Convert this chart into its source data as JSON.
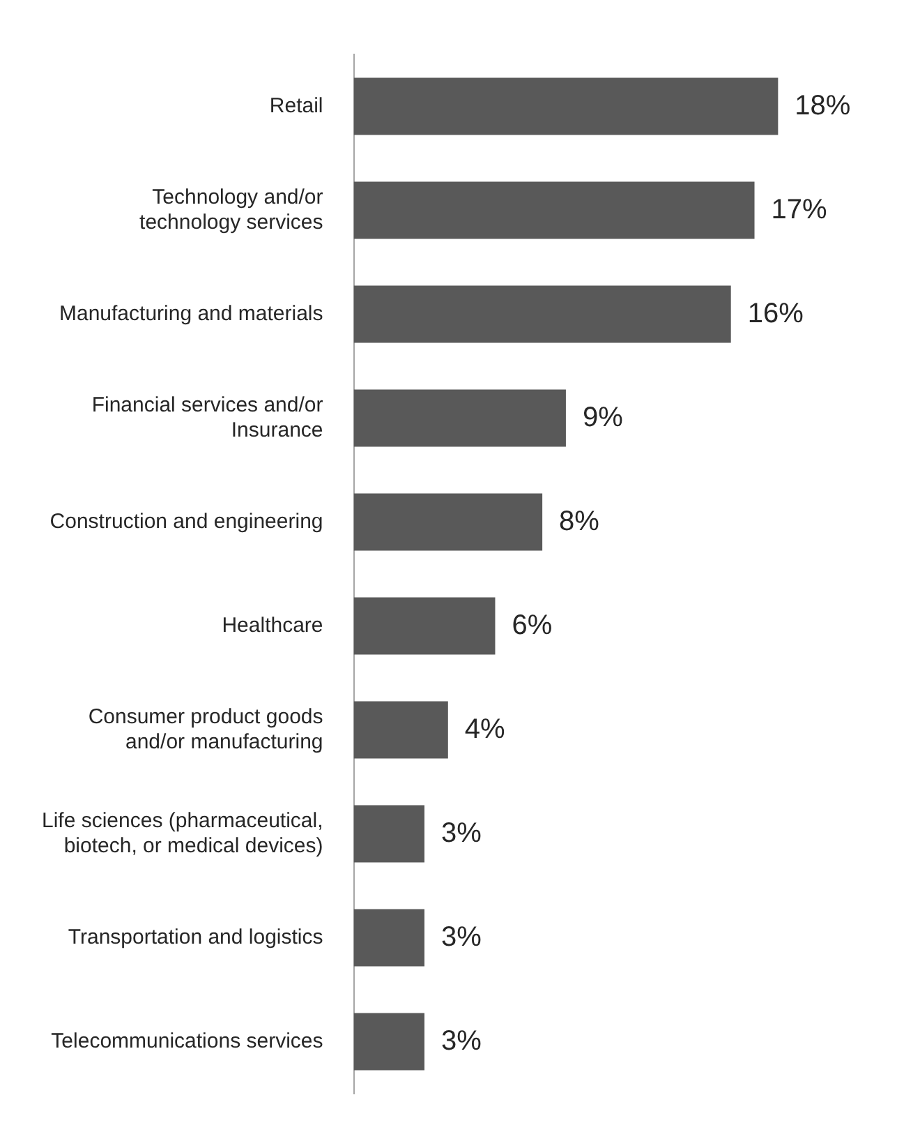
{
  "chart_data": {
    "type": "bar",
    "orientation": "horizontal",
    "categories": [
      "Retail",
      "Technology and/or\ntechnology services",
      "Manufacturing and materials",
      "Financial services and/or\nInsurance",
      "Construction and engineering",
      "Healthcare",
      "Consumer product goods\nand/or manufacturing",
      "Life sciences (pharmaceutical,\nbiotech, or medical devices)",
      "Transportation and logistics",
      "Telecommunications services"
    ],
    "values": [
      18,
      17,
      16,
      9,
      8,
      6,
      4,
      3,
      3,
      3
    ],
    "value_labels": [
      "18%",
      "17%",
      "16%",
      "9%",
      "8%",
      "6%",
      "4%",
      "3%",
      "3%",
      "3%"
    ],
    "color": "#595959",
    "grid": false,
    "legend": false,
    "tick_labels": "y"
  }
}
